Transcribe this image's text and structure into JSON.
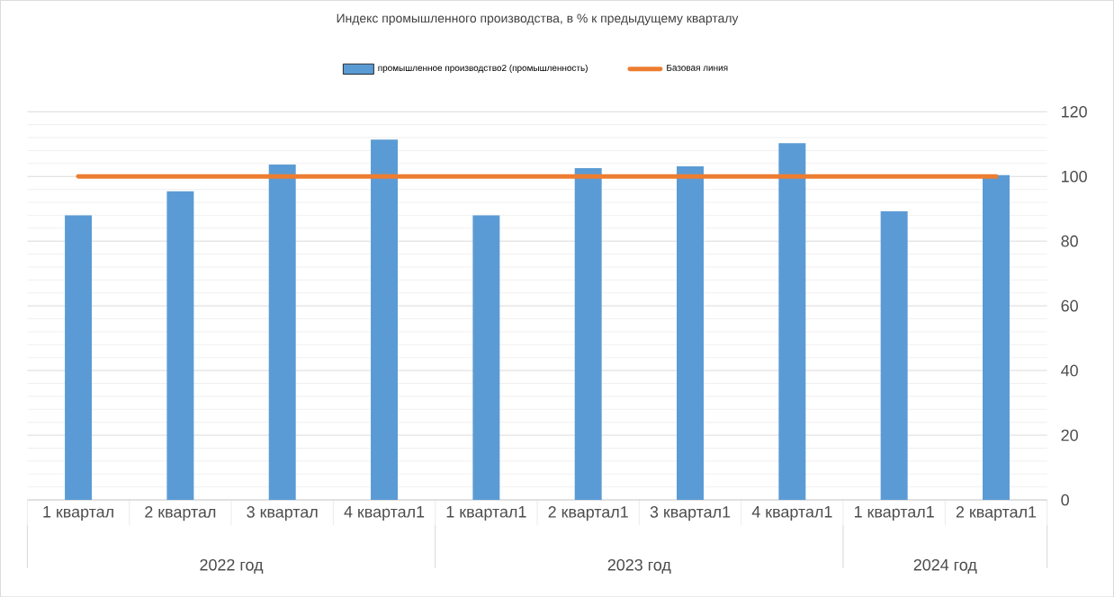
{
  "chart_data": {
    "type": "bar",
    "title": "Индекс промышленного производства,  в % к предыдущему  кварталу",
    "categories": [
      "1 квартал",
      "2 квартал",
      "3 квартал",
      "4 квартал1",
      "1 квартал1",
      "2 квартал1",
      "3 квартал1",
      "4 квартал1",
      "1 квартал1",
      "2 квартал1"
    ],
    "series": [
      {
        "name": "промышленное производство2 (промышленность)",
        "color": "#5b9bd5",
        "values": [
          88,
          95.4,
          103.7,
          111.4,
          88,
          102.6,
          103.1,
          110.3,
          89.2,
          100.4
        ]
      },
      {
        "name": "Базовая линия",
        "type": "line",
        "color": "#ed7d31",
        "values": [
          100,
          100,
          100,
          100,
          100,
          100,
          100,
          100,
          100,
          100
        ]
      }
    ],
    "annotations": [
      "2022 год",
      "2023 год",
      "2024 год"
    ],
    "ylim": [
      0,
      120
    ],
    "yticks": [
      0,
      20,
      40,
      60,
      80,
      100,
      120
    ],
    "grid": true,
    "legend": "top"
  }
}
